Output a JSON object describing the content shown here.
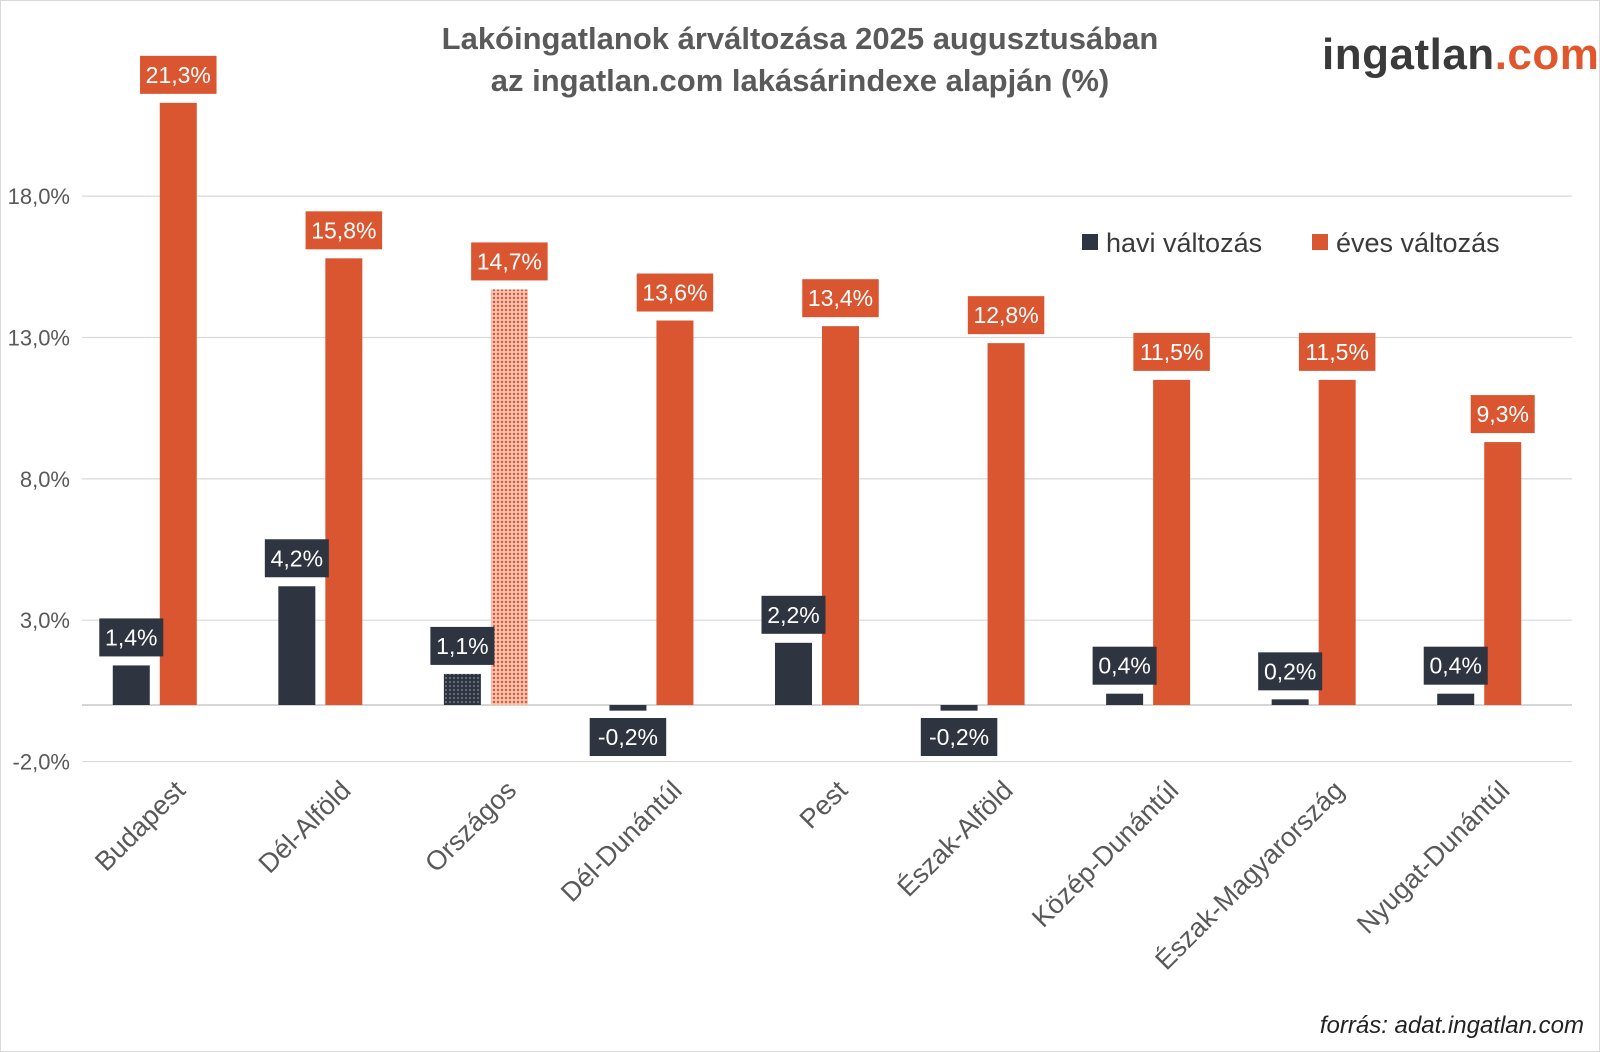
{
  "title_line1": "Lakóingatlanok árváltozása 2025 augusztusában",
  "title_line2": "az ingatlan.com lakásárindexe alapján (%)",
  "logo": {
    "main": "ingatlan",
    "suffix": ".com"
  },
  "source": "forrás: adat.ingatlan.com",
  "colors": {
    "monthly": "#2e3440",
    "yearly": "#d95630",
    "grid": "#d9d9d9",
    "axis_text": "#595959"
  },
  "chart_data": {
    "type": "bar",
    "title": "Lakóingatlanok árváltozása 2025 augusztusában az ingatlan.com lakásárindexe alapján (%)",
    "xlabel": "",
    "ylabel": "",
    "ylim": [
      -2,
      22.5
    ],
    "yticks": [
      -2,
      3,
      8,
      13,
      18
    ],
    "ytick_labels": [
      "-2,0%",
      "3,0%",
      "8,0%",
      "13,0%",
      "18,0%"
    ],
    "grid": true,
    "legend_position": "top-right",
    "categories": [
      "Budapest",
      "Dél-Alföld",
      "Országos",
      "Dél-Dunántúl",
      "Pest",
      "Észak-Alföld",
      "Közép-Dunántúl",
      "Észak-Magyarország",
      "Nyugat-Dunántúl"
    ],
    "highlight_category": "Országos",
    "series": [
      {
        "name": "havi változás",
        "values": [
          1.4,
          4.2,
          1.1,
          -0.2,
          2.2,
          -0.2,
          0.4,
          0.2,
          0.4
        ],
        "labels": [
          "1,4%",
          "4,2%",
          "1,1%",
          "-0,2%",
          "2,2%",
          "-0,2%",
          "0,4%",
          "0,2%",
          "0,4%"
        ]
      },
      {
        "name": "éves változás",
        "values": [
          21.3,
          15.8,
          14.7,
          13.6,
          13.4,
          12.8,
          11.5,
          11.5,
          9.3
        ],
        "labels": [
          "21,3%",
          "15,8%",
          "14,7%",
          "13,6%",
          "13,4%",
          "12,8%",
          "11,5%",
          "11,5%",
          "9,3%"
        ]
      }
    ]
  }
}
